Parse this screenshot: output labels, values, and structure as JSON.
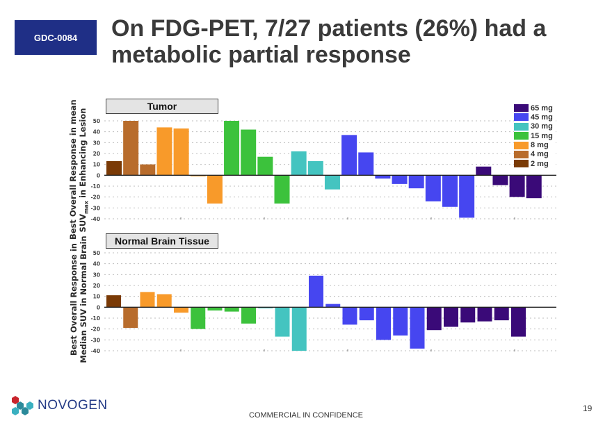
{
  "badge": "GDC-0084",
  "title": "On FDG-PET, 7/27 patients (26%) had a metabolic partial response",
  "footer": "COMMERCIAL IN CONFIDENCE",
  "page_number": "19",
  "logo_text": "NOVOGEN",
  "colors": {
    "65 mg": "#3a0a78",
    "45 mg": "#4646f0",
    "30 mg": "#44c4c0",
    "15 mg": "#3cc23c",
    "8 mg": "#f89a2a",
    "4 mg": "#b86c2c",
    "2 mg": "#7a3a06"
  },
  "legend": [
    "65 mg",
    "45 mg",
    "30 mg",
    "15 mg",
    "8 mg",
    "4 mg",
    "2 mg"
  ],
  "ylabel_tumor": "Best Overall Response in mean SUVmax in Enhancing Lesion",
  "ylabel_tumor_parts": {
    "line1": "Best Overall Response in mean",
    "line2_a": "SUV",
    "line2_sub": "max",
    "line2_b": " in Enhancing Lesion"
  },
  "ylabel_brain": {
    "line1": "Best Overall Response in",
    "line2": "Median SUV in Normal Brain"
  },
  "chart_data": [
    {
      "type": "bar",
      "title": "Tumor",
      "ylim": [
        -40,
        50
      ],
      "yticks": [
        50,
        40,
        30,
        20,
        10,
        0,
        -10,
        -20,
        -30,
        -40
      ],
      "grid": true,
      "legend_position": "top-right",
      "series": [
        {
          "name": "2 mg",
          "values": [
            13
          ]
        },
        {
          "name": "4 mg",
          "values": [
            50,
            10
          ]
        },
        {
          "name": "8 mg",
          "values": [
            44,
            43,
            -1,
            -26
          ]
        },
        {
          "name": "15 mg",
          "values": [
            50,
            42,
            17,
            -26
          ]
        },
        {
          "name": "30 mg",
          "values": [
            22,
            13,
            -13
          ]
        },
        {
          "name": "45 mg",
          "values": [
            37,
            21,
            -3,
            -8,
            -12,
            -24,
            -29,
            -39
          ]
        },
        {
          "name": "65 mg",
          "values": [
            8,
            -9,
            -20,
            -21
          ]
        }
      ]
    },
    {
      "type": "bar",
      "title": "Normal Brain Tissue",
      "ylim": [
        -40,
        50
      ],
      "yticks": [
        50,
        40,
        30,
        20,
        10,
        0,
        -10,
        -20,
        -30,
        -40
      ],
      "grid": true,
      "series": [
        {
          "name": "2 mg",
          "values": [
            11
          ]
        },
        {
          "name": "4 mg",
          "values": [
            -19
          ]
        },
        {
          "name": "8 mg",
          "values": [
            14,
            12,
            -5
          ]
        },
        {
          "name": "15 mg",
          "values": [
            -20,
            -3,
            -4,
            -15
          ]
        },
        {
          "name": "30 mg",
          "values": [
            -1,
            -27,
            -40
          ]
        },
        {
          "name": "45 mg",
          "values": [
            29,
            3,
            -16,
            -12,
            -30,
            -26,
            -38
          ]
        },
        {
          "name": "65 mg",
          "values": [
            -21,
            -18,
            -14,
            -13,
            -12,
            -27
          ]
        }
      ]
    }
  ]
}
